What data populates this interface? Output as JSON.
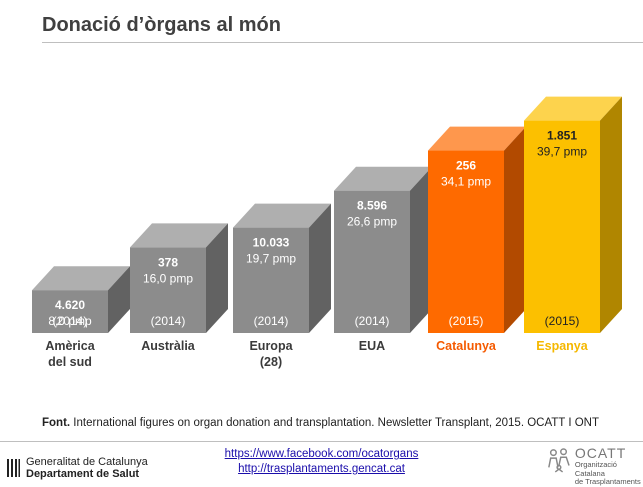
{
  "title": "Donació d’òrgans al món",
  "chart_data": {
    "type": "bar",
    "categories": [
      [
        "Amèrica",
        "del sud"
      ],
      [
        "Austràlia"
      ],
      [
        "Europa",
        "(28)"
      ],
      [
        "EUA"
      ],
      [
        "Catalunya"
      ],
      [
        "Espanya"
      ]
    ],
    "values_pmp": [
      8.0,
      16.0,
      19.7,
      26.6,
      34.1,
      39.7
    ],
    "donors": [
      "4.620",
      "378",
      "10.033",
      "8.596",
      "256",
      "1.851"
    ],
    "pmp_labels": [
      "8,0 pmp",
      "16,0 pmp",
      "19,7 pmp",
      "26,6 pmp",
      "34,1 pmp",
      "39,7 pmp"
    ],
    "years": [
      "(2014)",
      "(2014)",
      "(2014)",
      "(2014)",
      "(2015)",
      "(2015)"
    ],
    "colors": {
      "gray": "#8c8c8c",
      "catalunya": "#fe6a00",
      "espanya": "#fcc000"
    },
    "label_colors": [
      "#3a3a3a",
      "#3a3a3a",
      "#3a3a3a",
      "#3a3a3a",
      "#f55a00",
      "#f5b800"
    ]
  },
  "source": {
    "bold": "Font.",
    "text": " International figures on organ donation and transplantation. Newsletter Transplant, 2015. OCATT I ONT"
  },
  "links": [
    "https://www.facebook.com/ocatorgans",
    "http://trasplantaments.gencat.cat"
  ],
  "footer": {
    "gencat_line1": "Generalitat de Catalunya",
    "gencat_line2": "Departament de Salut",
    "ocatt_brand": "OCATT",
    "ocatt_line1": "Organització Catalana",
    "ocatt_line2": "de Trasplantaments"
  }
}
